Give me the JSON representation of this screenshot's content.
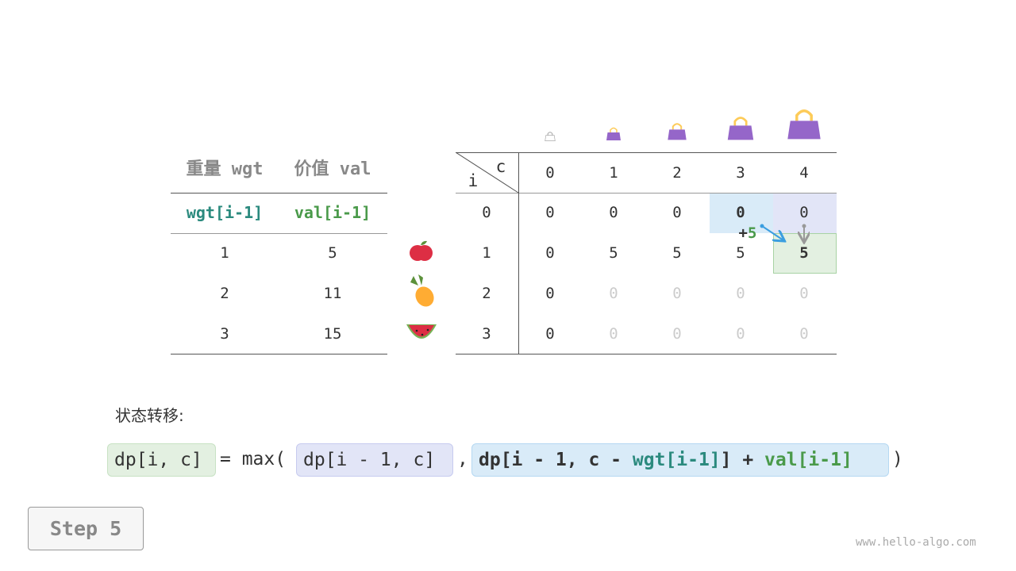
{
  "left_table": {
    "headers": [
      "重量 wgt",
      "价值 val"
    ],
    "subheaders": [
      "wgt[i-1]",
      "val[i-1]"
    ],
    "rows": [
      [
        "1",
        "5"
      ],
      [
        "2",
        "11"
      ],
      [
        "3",
        "15"
      ]
    ]
  },
  "items": [
    "apple-icon",
    "pineapple-icon",
    "watermelon-icon"
  ],
  "dp_table": {
    "corner_c": "c",
    "corner_i": "i",
    "col_headers": [
      "0",
      "1",
      "2",
      "3",
      "4"
    ],
    "row_headers": [
      "0",
      "1",
      "2",
      "3"
    ],
    "rows": [
      [
        "0",
        "0",
        "0",
        "0",
        "0"
      ],
      [
        "0",
        "5",
        "5",
        "5",
        "5"
      ],
      [
        "0",
        "0",
        "0",
        "0",
        "0"
      ],
      [
        "0",
        "0",
        "0",
        "0",
        "0"
      ]
    ],
    "annotation": {
      "plus": "+",
      "value": "5"
    }
  },
  "formula_label": "状态转移:",
  "formula": {
    "lhs": "dp[i, c]",
    "eq": "= max(",
    "arg1": "dp[i - 1, c]",
    "comma": ",",
    "arg2_a": "dp[i - 1, c - ",
    "arg2_wgt": "wgt[i-1]",
    "arg2_b": "] + ",
    "arg2_val": "val[i-1]",
    "close": ")"
  },
  "step_button": "Step 5",
  "watermark": "www.hello-algo.com",
  "colors": {
    "teal": "#2b8a7e",
    "green": "#4a9a4a",
    "blue_hl": "#d9ebf8",
    "purple_hl": "#e2e5f7",
    "green_hl": "#e3f0e1",
    "bag": "#9566c9"
  }
}
